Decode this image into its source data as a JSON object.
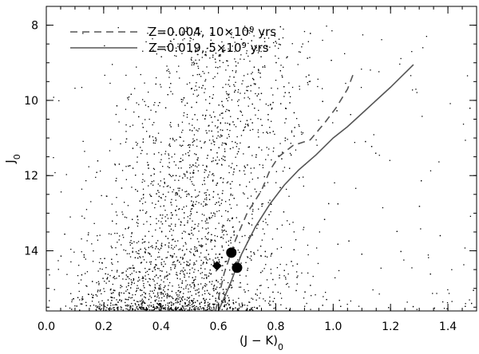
{
  "chart_data": {
    "type": "scatter",
    "title": "",
    "xlabel": "(J − K)",
    "xlabel_sub": "0",
    "ylabel": "J",
    "ylabel_sub": "0",
    "xlim": [
      0.0,
      1.5
    ],
    "ylim": [
      15.6,
      7.5
    ],
    "y_inverted": true,
    "x_ticks": [
      "0.0",
      "0.2",
      "0.4",
      "0.6",
      "0.8",
      "1.0",
      "1.2",
      "1.4"
    ],
    "x_tick_values": [
      0.0,
      0.2,
      0.4,
      0.6,
      0.8,
      1.0,
      1.2,
      1.4
    ],
    "y_ticks": [
      "8",
      "10",
      "12",
      "14"
    ],
    "y_tick_values": [
      8,
      10,
      12,
      14
    ],
    "grid": false,
    "legend_position": "top-left",
    "series": [
      {
        "name": "Z=0.004, 10×10⁹ yrs",
        "legend_main": "Z=0.004, 10×10",
        "legend_sup": "9",
        "legend_tail": " yrs",
        "style": "dashed",
        "color": "#555555",
        "x": [
          0.59,
          0.62,
          0.66,
          0.7,
          0.75,
          0.78,
          0.81,
          0.86,
          0.92,
          0.97,
          1.01,
          1.05,
          1.07
        ],
        "y": [
          15.6,
          14.6,
          13.7,
          13.0,
          12.4,
          11.85,
          11.5,
          11.2,
          11.05,
          10.6,
          10.2,
          9.7,
          9.3
        ]
      },
      {
        "name": "Z=0.019, 5×10⁹ yrs",
        "legend_main": "Z=0.019, 5×10",
        "legend_sup": "9",
        "legend_tail": " yrs",
        "style": "solid",
        "color": "#555555",
        "x": [
          0.6,
          0.64,
          0.68,
          0.73,
          0.78,
          0.83,
          0.88,
          0.94,
          1.0,
          1.05,
          1.1,
          1.15,
          1.2,
          1.24,
          1.28
        ],
        "y": [
          15.6,
          14.9,
          14.1,
          13.35,
          12.75,
          12.25,
          11.85,
          11.45,
          11.0,
          10.7,
          10.35,
          10.0,
          9.65,
          9.35,
          9.05
        ]
      }
    ],
    "highlight_points": [
      {
        "shape": "circle",
        "x": 0.645,
        "y": 14.05
      },
      {
        "shape": "circle",
        "x": 0.665,
        "y": 14.45
      },
      {
        "shape": "diamond",
        "x": 0.595,
        "y": 14.4
      }
    ],
    "scatter_cloud": {
      "description": "several thousand small black dots, densest near (0.45, 15), sparse toward the upper right",
      "color": "#000000",
      "count": 3200,
      "x_center": 0.45,
      "x_spread": 0.17,
      "y_bright_limit": 8.0,
      "y_faint_limit": 15.6
    }
  }
}
